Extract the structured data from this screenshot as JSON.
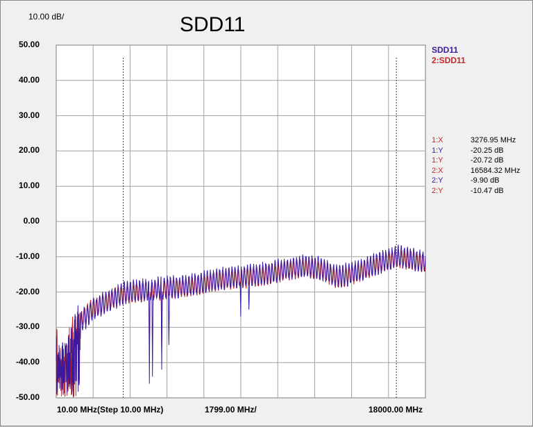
{
  "header": {
    "scale_label": "10.00 dB/",
    "title": "SDD11"
  },
  "chart_data": {
    "type": "line",
    "title": "SDD11",
    "y_scale_label": "10.00 dB/",
    "ylim": [
      -50,
      50
    ],
    "y_ticks": [
      "50.00",
      "40.00",
      "30.00",
      "20.00",
      "10.00",
      "0.00",
      "-10.00",
      "-20.00",
      "-30.00",
      "-40.00",
      "-50.00"
    ],
    "x_tick_labels": [
      "10.00 MHz(Step 10.00 MHz)",
      "1799.00 MHz/",
      "18000.00 MHz"
    ],
    "x_range_mhz": [
      10,
      18000
    ],
    "grid": true,
    "legend": [
      {
        "name": "SDD11",
        "color": "#3c1aa0"
      },
      {
        "name": "2:SDD11",
        "color": "#c0282a"
      }
    ],
    "series": [
      {
        "name": "SDD11",
        "color": "#3c1aa0",
        "env_x": [
          10,
          200,
          400,
          600,
          900,
          1300,
          1800,
          2400,
          2900,
          3277,
          3600,
          4200,
          5000,
          5800,
          6600,
          7400,
          8300,
          9200,
          10000,
          10800,
          11500,
          12200,
          13000,
          13600,
          14200,
          15000,
          15800,
          16584,
          17200,
          18000
        ],
        "env_y": [
          -38,
          -41,
          -40,
          -37,
          -33,
          -28,
          -25,
          -23,
          -21.5,
          -20.25,
          -20,
          -19.5,
          -19,
          -18.5,
          -18,
          -17,
          -16,
          -15.5,
          -15,
          -14,
          -13.2,
          -12.5,
          -13.5,
          -15.5,
          -15,
          -13.5,
          -11.5,
          -9.9,
          -10.5,
          -11.5
        ],
        "dips": [
          {
            "x": 4550,
            "y": -46
          },
          {
            "x": 4700,
            "y": -44
          },
          {
            "x": 5150,
            "y": -42
          },
          {
            "x": 5500,
            "y": -35
          },
          {
            "x": 9000,
            "y": -27
          },
          {
            "x": 9400,
            "y": -25
          }
        ],
        "rough_upto_mhz": 1200,
        "rough_min_db": -50,
        "ripple_period_mhz": 150,
        "ripple_amp_db": 3.5
      },
      {
        "name": "2:SDD11",
        "color": "#c0282a",
        "env_x": [
          10,
          200,
          400,
          600,
          900,
          1300,
          1800,
          2400,
          2900,
          3277,
          3600,
          4200,
          5000,
          5800,
          6600,
          7400,
          8300,
          9200,
          10000,
          10800,
          11500,
          12200,
          13000,
          13600,
          14200,
          15000,
          15800,
          16584,
          17200,
          18000
        ],
        "env_y": [
          -36,
          -40,
          -39,
          -36,
          -32,
          -27,
          -24.5,
          -23,
          -21.5,
          -20.72,
          -20.5,
          -20,
          -19.5,
          -19,
          -18.5,
          -17.5,
          -16.5,
          -16,
          -15.5,
          -14.5,
          -13.7,
          -13,
          -14,
          -16,
          -15.5,
          -14,
          -12,
          -10.47,
          -11,
          -12
        ],
        "dips": [
          {
            "x": 4550,
            "y": -40
          },
          {
            "x": 5150,
            "y": -38
          }
        ],
        "rough_upto_mhz": 1200,
        "rough_min_db": -50,
        "ripple_period_mhz": 150,
        "ripple_amp_db": 3
      }
    ],
    "markers": [
      {
        "id": "1",
        "x_mhz": 3276.95
      },
      {
        "id": "2",
        "x_mhz": 16584.32
      }
    ]
  },
  "marker_readout": [
    {
      "label": "1:X",
      "value": "3276.95 MHz",
      "color": "#c0282a"
    },
    {
      "label": "1:Y",
      "value": "-20.25 dB",
      "color": "#3c1aa0"
    },
    {
      "label": "1:Y",
      "value": "-20.72 dB",
      "color": "#c0282a"
    },
    {
      "label": "2:X",
      "value": "16584.32 MHz",
      "color": "#c0282a"
    },
    {
      "label": "2:Y",
      "value": "-9.90 dB",
      "color": "#3c1aa0"
    },
    {
      "label": "2:Y",
      "value": "-10.47 dB",
      "color": "#c0282a"
    }
  ]
}
